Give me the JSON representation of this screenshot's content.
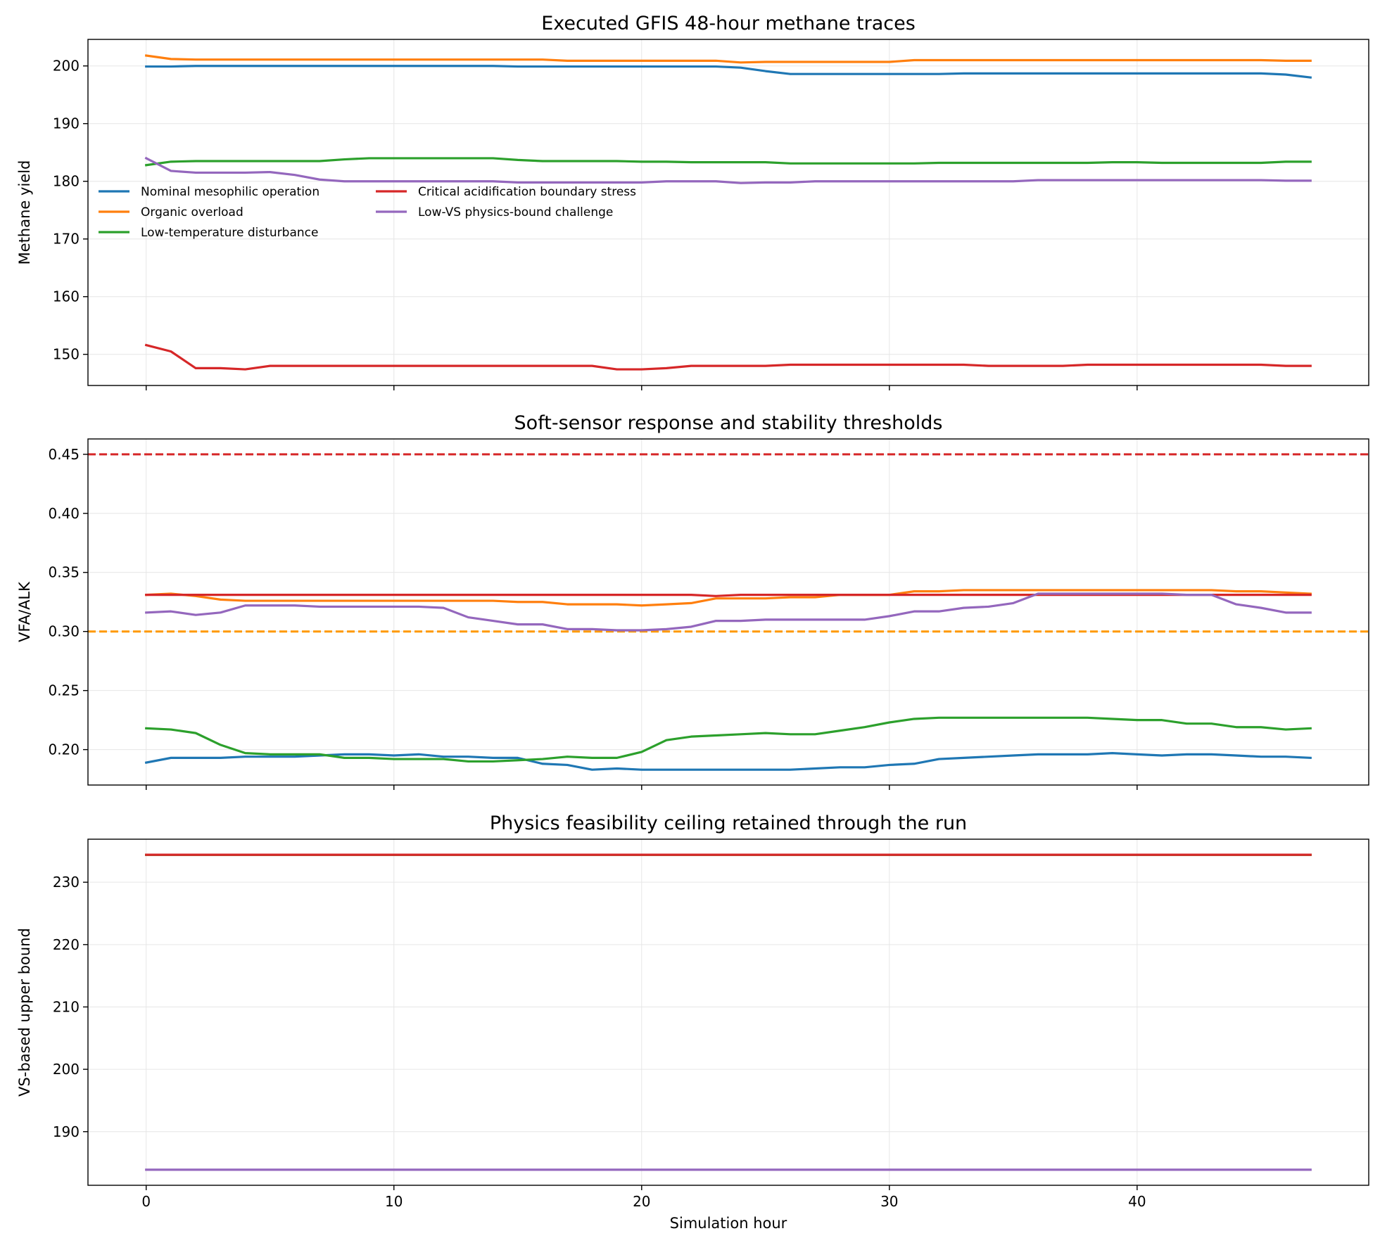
{
  "figure": {
    "xlabel": "Simulation hour"
  },
  "chart_data": [
    {
      "type": "line",
      "title": "Executed GFIS 48-hour methane traces",
      "xlabel": "",
      "ylabel": "Methane yield",
      "xlim": [
        -2.35,
        49.35
      ],
      "ylim": [
        144.6,
        204.6
      ],
      "xticks": [
        0,
        10,
        20,
        30,
        40
      ],
      "yticks": [
        150,
        160,
        170,
        180,
        190,
        200
      ],
      "grid": true,
      "legend": {
        "placement": "upper-left",
        "columns": 2,
        "entries": [
          "Nominal mesophilic operation",
          "Organic overload",
          "Low-temperature disturbance",
          "Critical acidification boundary stress",
          "Low-VS physics-bound challenge"
        ]
      },
      "series": [
        {
          "name": "Nominal mesophilic operation",
          "color": "#1f77b4",
          "values": [
            199.9,
            199.9,
            200.0,
            200.0,
            200.0,
            200.0,
            200.0,
            200.0,
            200.0,
            200.0,
            200.0,
            200.0,
            200.0,
            200.0,
            200.0,
            199.9,
            199.9,
            199.9,
            199.9,
            199.9,
            199.9,
            199.9,
            199.9,
            199.9,
            199.7,
            199.1,
            198.6,
            198.6,
            198.6,
            198.6,
            198.6,
            198.6,
            198.6,
            198.7,
            198.7,
            198.7,
            198.7,
            198.7,
            198.7,
            198.7,
            198.7,
            198.7,
            198.7,
            198.7,
            198.7,
            198.7,
            198.5,
            198.0
          ]
        },
        {
          "name": "Organic overload",
          "color": "#ff7f0e",
          "values": [
            201.8,
            201.2,
            201.1,
            201.1,
            201.1,
            201.1,
            201.1,
            201.1,
            201.1,
            201.1,
            201.1,
            201.1,
            201.1,
            201.1,
            201.1,
            201.1,
            201.1,
            200.9,
            200.9,
            200.9,
            200.9,
            200.9,
            200.9,
            200.9,
            200.6,
            200.7,
            200.7,
            200.7,
            200.7,
            200.7,
            200.7,
            201.0,
            201.0,
            201.0,
            201.0,
            201.0,
            201.0,
            201.0,
            201.0,
            201.0,
            201.0,
            201.0,
            201.0,
            201.0,
            201.0,
            201.0,
            200.9,
            200.9
          ]
        },
        {
          "name": "Low-temperature disturbance",
          "color": "#2ca02c",
          "values": [
            182.8,
            183.4,
            183.5,
            183.5,
            183.5,
            183.5,
            183.5,
            183.5,
            183.8,
            184.0,
            184.0,
            184.0,
            184.0,
            184.0,
            184.0,
            183.7,
            183.5,
            183.5,
            183.5,
            183.5,
            183.4,
            183.4,
            183.3,
            183.3,
            183.3,
            183.3,
            183.1,
            183.1,
            183.1,
            183.1,
            183.1,
            183.1,
            183.2,
            183.2,
            183.2,
            183.2,
            183.2,
            183.2,
            183.2,
            183.3,
            183.3,
            183.2,
            183.2,
            183.2,
            183.2,
            183.2,
            183.4,
            183.4
          ]
        },
        {
          "name": "Critical acidification boundary stress",
          "color": "#d62728",
          "values": [
            151.6,
            150.5,
            147.6,
            147.6,
            147.4,
            148.0,
            148.0,
            148.0,
            148.0,
            148.0,
            148.0,
            148.0,
            148.0,
            148.0,
            148.0,
            148.0,
            148.0,
            148.0,
            148.0,
            147.4,
            147.4,
            147.6,
            148.0,
            148.0,
            148.0,
            148.0,
            148.2,
            148.2,
            148.2,
            148.2,
            148.2,
            148.2,
            148.2,
            148.2,
            148.0,
            148.0,
            148.0,
            148.0,
            148.2,
            148.2,
            148.2,
            148.2,
            148.2,
            148.2,
            148.2,
            148.2,
            148.0,
            148.0
          ]
        },
        {
          "name": "Low-VS physics-bound challenge",
          "color": "#9467bd",
          "values": [
            184.0,
            181.8,
            181.5,
            181.5,
            181.5,
            181.6,
            181.1,
            180.3,
            180.0,
            180.0,
            180.0,
            180.0,
            180.0,
            180.0,
            180.0,
            179.8,
            179.8,
            179.8,
            179.8,
            179.8,
            179.8,
            180.0,
            180.0,
            180.0,
            179.7,
            179.8,
            179.8,
            180.0,
            180.0,
            180.0,
            180.0,
            180.0,
            180.0,
            180.0,
            180.0,
            180.0,
            180.2,
            180.2,
            180.2,
            180.2,
            180.2,
            180.2,
            180.2,
            180.2,
            180.2,
            180.2,
            180.1,
            180.1
          ]
        }
      ]
    },
    {
      "type": "line",
      "title": "Soft-sensor response and stability thresholds",
      "xlabel": "",
      "ylabel": "VFA/ALK",
      "xlim": [
        -2.35,
        49.35
      ],
      "ylim": [
        0.17,
        0.463
      ],
      "xticks": [
        0,
        10,
        20,
        30,
        40
      ],
      "yticks": [
        0.2,
        0.25,
        0.3,
        0.35,
        0.4,
        0.45
      ],
      "ytick_labels": [
        "0.20",
        "0.25",
        "0.30",
        "0.35",
        "0.40",
        "0.45"
      ],
      "grid": true,
      "thresholds": [
        {
          "y": 0.45,
          "color": "#d62728",
          "style": "dashed"
        },
        {
          "y": 0.3,
          "color": "#ff9900",
          "style": "dashed"
        }
      ],
      "series": [
        {
          "name": "Nominal mesophilic operation",
          "color": "#1f77b4",
          "values": [
            0.189,
            0.193,
            0.193,
            0.193,
            0.194,
            0.194,
            0.194,
            0.195,
            0.196,
            0.196,
            0.195,
            0.196,
            0.194,
            0.194,
            0.193,
            0.193,
            0.188,
            0.187,
            0.183,
            0.184,
            0.183,
            0.183,
            0.183,
            0.183,
            0.183,
            0.183,
            0.183,
            0.184,
            0.185,
            0.185,
            0.187,
            0.188,
            0.192,
            0.193,
            0.194,
            0.195,
            0.196,
            0.196,
            0.196,
            0.197,
            0.196,
            0.195,
            0.196,
            0.196,
            0.195,
            0.194,
            0.194,
            0.193
          ]
        },
        {
          "name": "Organic overload",
          "color": "#ff7f0e",
          "values": [
            0.331,
            0.332,
            0.33,
            0.327,
            0.326,
            0.326,
            0.326,
            0.326,
            0.326,
            0.326,
            0.326,
            0.326,
            0.326,
            0.326,
            0.326,
            0.325,
            0.325,
            0.323,
            0.323,
            0.323,
            0.322,
            0.323,
            0.324,
            0.328,
            0.328,
            0.328,
            0.329,
            0.329,
            0.331,
            0.331,
            0.331,
            0.334,
            0.334,
            0.335,
            0.335,
            0.335,
            0.335,
            0.335,
            0.335,
            0.335,
            0.335,
            0.335,
            0.335,
            0.335,
            0.334,
            0.334,
            0.333,
            0.332
          ]
        },
        {
          "name": "Low-temperature disturbance",
          "color": "#2ca02c",
          "values": [
            0.218,
            0.217,
            0.214,
            0.204,
            0.197,
            0.196,
            0.196,
            0.196,
            0.193,
            0.193,
            0.192,
            0.192,
            0.192,
            0.19,
            0.19,
            0.191,
            0.192,
            0.194,
            0.193,
            0.193,
            0.198,
            0.208,
            0.211,
            0.212,
            0.213,
            0.214,
            0.213,
            0.213,
            0.216,
            0.219,
            0.223,
            0.226,
            0.227,
            0.227,
            0.227,
            0.227,
            0.227,
            0.227,
            0.227,
            0.226,
            0.225,
            0.225,
            0.222,
            0.222,
            0.219,
            0.219,
            0.217,
            0.218
          ]
        },
        {
          "name": "Critical acidification boundary stress",
          "color": "#d62728",
          "values": [
            0.331,
            0.331,
            0.331,
            0.331,
            0.331,
            0.331,
            0.331,
            0.331,
            0.331,
            0.331,
            0.331,
            0.331,
            0.331,
            0.331,
            0.331,
            0.331,
            0.331,
            0.331,
            0.331,
            0.331,
            0.331,
            0.331,
            0.331,
            0.33,
            0.331,
            0.331,
            0.331,
            0.331,
            0.331,
            0.331,
            0.331,
            0.331,
            0.331,
            0.331,
            0.331,
            0.331,
            0.331,
            0.331,
            0.331,
            0.331,
            0.331,
            0.331,
            0.331,
            0.331,
            0.331,
            0.331,
            0.331,
            0.331
          ]
        },
        {
          "name": "Low-VS physics-bound challenge",
          "color": "#9467bd",
          "values": [
            0.316,
            0.317,
            0.314,
            0.316,
            0.322,
            0.322,
            0.322,
            0.321,
            0.321,
            0.321,
            0.321,
            0.321,
            0.32,
            0.312,
            0.309,
            0.306,
            0.306,
            0.302,
            0.302,
            0.301,
            0.301,
            0.302,
            0.304,
            0.309,
            0.309,
            0.31,
            0.31,
            0.31,
            0.31,
            0.31,
            0.313,
            0.317,
            0.317,
            0.32,
            0.321,
            0.324,
            0.332,
            0.332,
            0.332,
            0.332,
            0.332,
            0.332,
            0.331,
            0.331,
            0.323,
            0.32,
            0.316,
            0.316
          ]
        }
      ]
    },
    {
      "type": "line",
      "title": "Physics feasibility ceiling retained through the run",
      "xlabel": "Simulation hour",
      "ylabel": "VS-based upper bound",
      "xlim": [
        -2.35,
        49.35
      ],
      "ylim": [
        181.4,
        236.9
      ],
      "xticks": [
        0,
        10,
        20,
        30,
        40
      ],
      "yticks": [
        190,
        200,
        210,
        220,
        230
      ],
      "grid": true,
      "series": [
        {
          "name": "Nominal mesophilic operation",
          "color": "#1f77b4",
          "constant": 234.4
        },
        {
          "name": "Organic overload",
          "color": "#ff7f0e",
          "constant": 234.4
        },
        {
          "name": "Low-temperature disturbance",
          "color": "#2ca02c",
          "constant": 234.4
        },
        {
          "name": "Critical acidification boundary stress",
          "color": "#d62728",
          "constant": 234.4
        },
        {
          "name": "Low-VS physics-bound challenge",
          "color": "#9467bd",
          "constant": 183.9
        }
      ]
    }
  ]
}
